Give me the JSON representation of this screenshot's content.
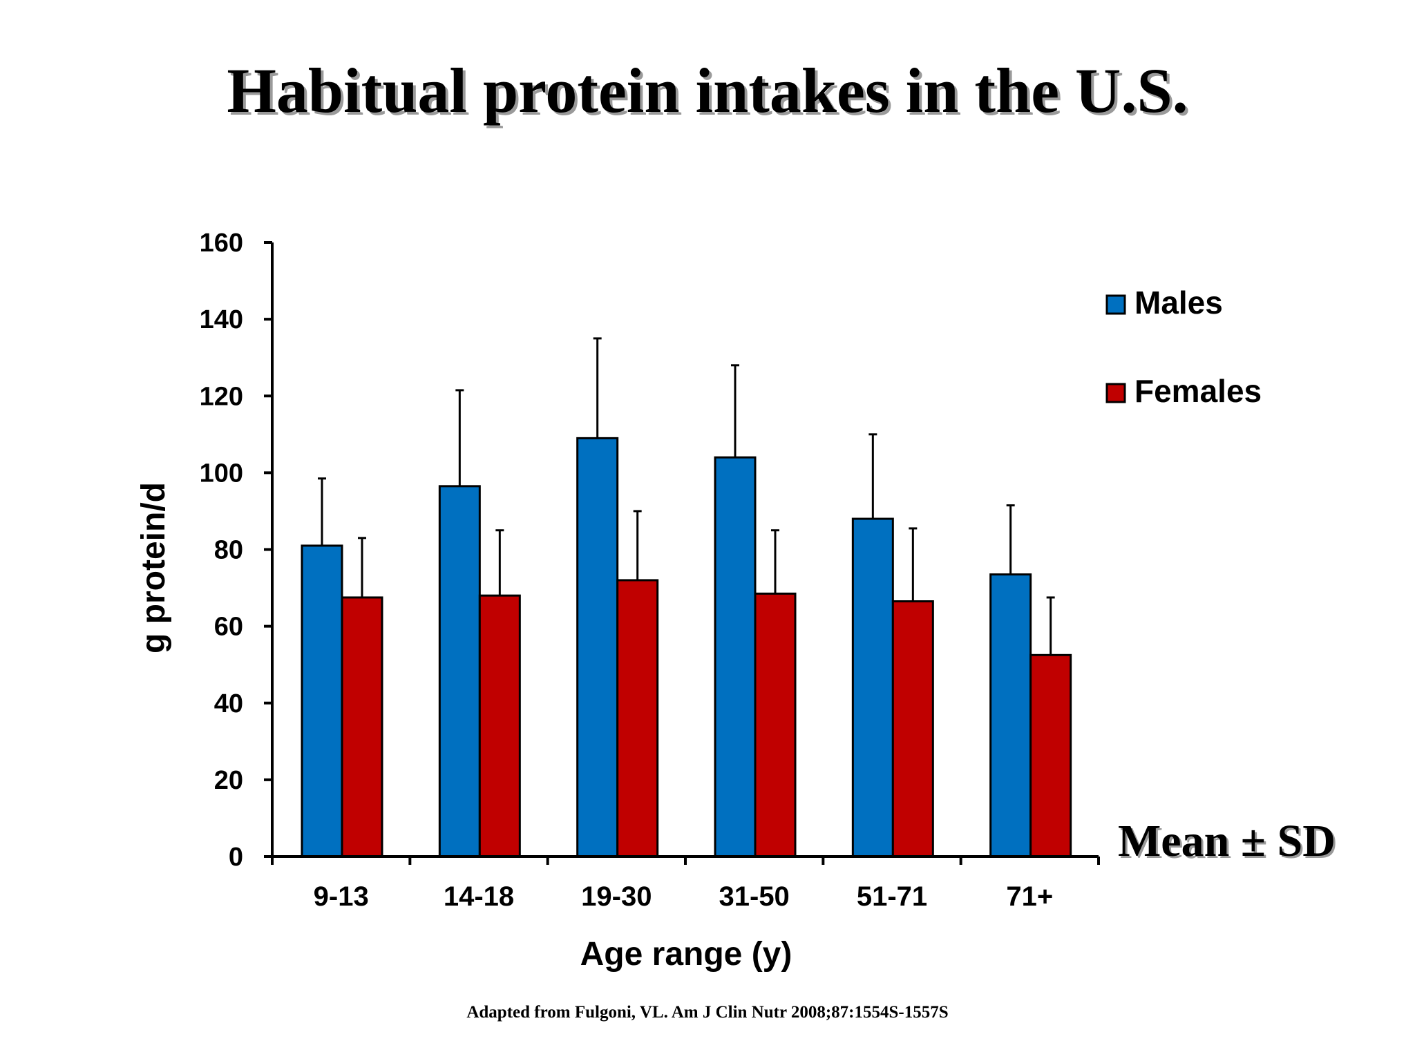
{
  "slide": {
    "title": "Habitual protein intakes in the U.S.",
    "note": "Mean ± SD",
    "source": "Adapted from Fulgoni, VL. Am J Clin Nutr 2008;87:1554S-1557S"
  },
  "chart_data": {
    "type": "bar",
    "title": "",
    "xlabel": "Age range (y)",
    "ylabel": "g protein/d",
    "ylim": [
      0,
      160
    ],
    "yticks": [
      0,
      20,
      40,
      60,
      80,
      100,
      120,
      140,
      160
    ],
    "categories": [
      "9-13",
      "14-18",
      "19-30",
      "31-50",
      "51-71",
      "71+"
    ],
    "series": [
      {
        "name": "Males",
        "color": "#0070c0",
        "values": [
          81,
          96.5,
          109,
          104,
          88,
          73.5
        ],
        "sd": [
          17.5,
          25,
          26,
          24,
          22,
          18
        ]
      },
      {
        "name": "Females",
        "color": "#c00000",
        "values": [
          67.5,
          68,
          72,
          68.5,
          66.5,
          52.5
        ],
        "sd": [
          15.5,
          17,
          18,
          16.5,
          19,
          15
        ]
      }
    ],
    "grid": false,
    "legend": "top-right",
    "error_bars": "upper"
  }
}
